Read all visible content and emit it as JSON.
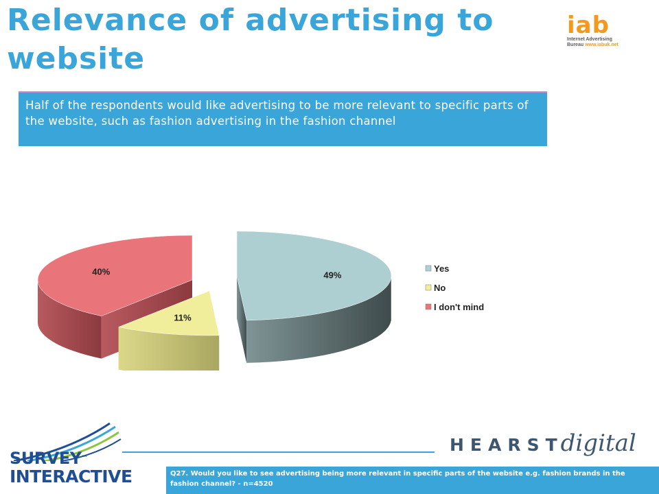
{
  "slide": {
    "title": "Relevance of advertising to website",
    "summary": "Half of the respondents would like advertising to be more relevant to specific parts of the website, such as fashion advertising in the fashion channel",
    "footnote": "Q27. Would you like to see advertising being more relevant in specific parts of the website e.g. fashion brands in the fashion channel? - n=4520"
  },
  "logos": {
    "iab": {
      "word": "iab",
      "line1": "Internet Advertising",
      "line2": "Bureau",
      "url": "www.iabuk.net"
    },
    "hearst": {
      "word": "HEARST",
      "digital": "digital"
    },
    "survey": {
      "top": "SURVEY",
      "tm": "™",
      "bottom": "INTERACTIVE"
    }
  },
  "colors": {
    "accent_blue": "#3aa5d8",
    "yes": "#aecfd2",
    "no": "#f0ee9a",
    "dont_mind": "#e9747a"
  },
  "chart_data": {
    "type": "pie",
    "style": "3d-exploded",
    "categories": [
      "Yes",
      "No",
      "I don't mind"
    ],
    "values": [
      49,
      11,
      40
    ],
    "data_labels": [
      "49%",
      "11%",
      "40%"
    ],
    "legend": {
      "placement": "right",
      "entries": [
        "Yes",
        "No",
        "I don't mind"
      ]
    }
  }
}
